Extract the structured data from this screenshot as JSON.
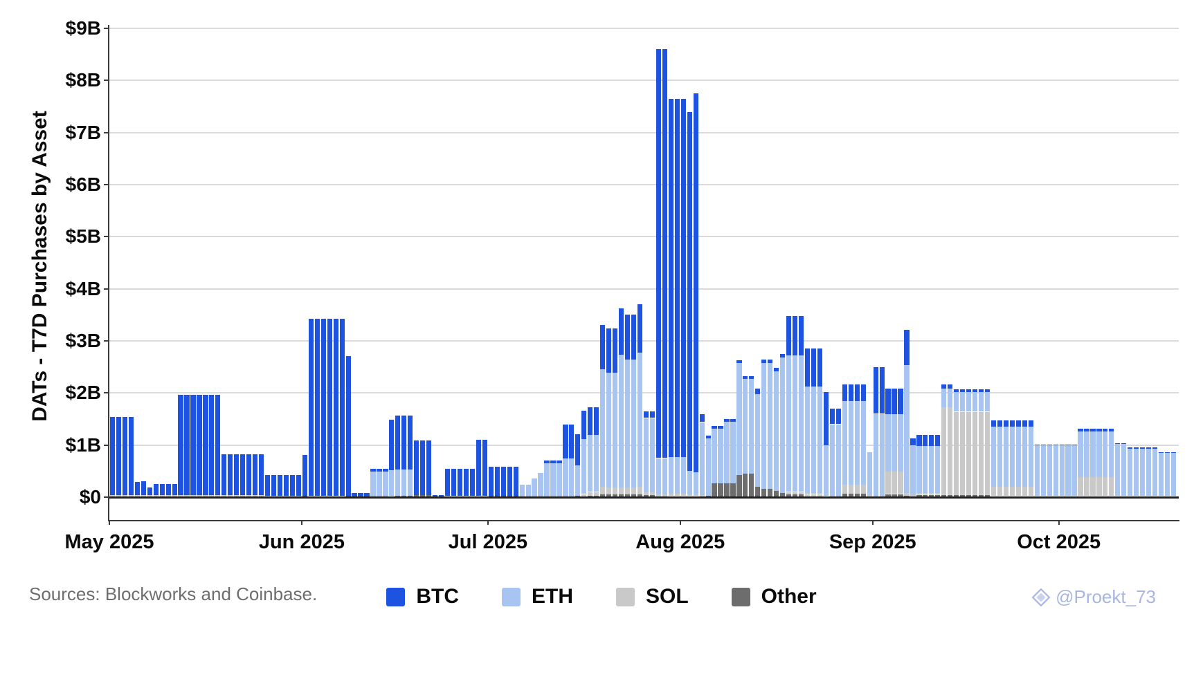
{
  "y_axis": {
    "title": "DATs - T7D Purchases by Asset"
  },
  "footer": {
    "sources": "Sources: Blockworks and Coinbase."
  },
  "watermark": {
    "icon": "gem-icon",
    "text": "@Proekt_73",
    "color": "#a9b6e4"
  },
  "legend": {
    "position": "bottom-center"
  },
  "chart_data": {
    "type": "bar",
    "stacked": true,
    "title": "",
    "xlabel": "",
    "ylabel": "DATs - T7D Purchases by Asset",
    "unit": "billions USD per bar (daily, trailing-7-day purchases)",
    "ylim": [
      0,
      9
    ],
    "y_tick_labels": [
      "$0",
      "$1B",
      "$2B",
      "$3B",
      "$4B",
      "$5B",
      "$6B",
      "$7B",
      "$8B",
      "$9B"
    ],
    "x_tick_labels": [
      {
        "label": "May 2025",
        "day_offset": 0
      },
      {
        "label": "Jun 2025",
        "day_offset": 31
      },
      {
        "label": "Jul 2025",
        "day_offset": 61
      },
      {
        "label": "Aug 2025",
        "day_offset": 92
      },
      {
        "label": "Sep 2025",
        "day_offset": 123
      },
      {
        "label": "Oct 2025",
        "day_offset": 153
      }
    ],
    "grid": "horizontal",
    "legend_position": "bottom",
    "start_date": "2025-05-01",
    "frequency": "daily",
    "series_colors": {
      "BTC": "#1d53e0",
      "ETH": "#a8c5f2",
      "SOL": "#c9c9c9",
      "Other": "#6d6d6d"
    },
    "stack_order_bottom_to_top": [
      "Other",
      "SOL",
      "ETH",
      "BTC"
    ],
    "daily_values_rle": {
      "columns": [
        "num_days",
        "BTC",
        "ETH",
        "SOL",
        "Other"
      ],
      "rows": [
        [
          4,
          1.5,
          0,
          0.04,
          0
        ],
        [
          1,
          0.25,
          0,
          0.04,
          0
        ],
        [
          1,
          0.27,
          0,
          0.04,
          0
        ],
        [
          1,
          0.15,
          0,
          0.04,
          0
        ],
        [
          4,
          0.21,
          0,
          0.04,
          0
        ],
        [
          7,
          1.92,
          0,
          0.04,
          0
        ],
        [
          7,
          0.78,
          0,
          0.04,
          0
        ],
        [
          6,
          0.4,
          0,
          0.03,
          0
        ],
        [
          1,
          0.79,
          0,
          0.02,
          0
        ],
        [
          6,
          3.4,
          0,
          0.02,
          0
        ],
        [
          1,
          2.7,
          0,
          0.01,
          0
        ],
        [
          3,
          0.07,
          0,
          0,
          0.01
        ],
        [
          3,
          0.06,
          0.48,
          0,
          0.01
        ],
        [
          1,
          0.97,
          0.5,
          0,
          0.02
        ],
        [
          3,
          1.04,
          0.5,
          0,
          0.03
        ],
        [
          3,
          1.05,
          0,
          0,
          0.04
        ],
        [
          2,
          0.02,
          0,
          0,
          0.02
        ],
        [
          5,
          0.53,
          0,
          0,
          0.02
        ],
        [
          2,
          1.08,
          0,
          0,
          0.02
        ],
        [
          5,
          0.57,
          0,
          0,
          0.01
        ],
        [
          2,
          0,
          0.23,
          0,
          0.01
        ],
        [
          1,
          0,
          0.35,
          0,
          0.01
        ],
        [
          1,
          0,
          0.46,
          0,
          0.01
        ],
        [
          3,
          0.05,
          0.64,
          0,
          0.01
        ],
        [
          2,
          0.65,
          0.73,
          0,
          0.02
        ],
        [
          1,
          0.6,
          0.58,
          0,
          0.03
        ],
        [
          1,
          0.55,
          1.05,
          0.04,
          0.02
        ],
        [
          2,
          0.52,
          1.1,
          0.07,
          0.03
        ],
        [
          1,
          0.85,
          2.25,
          0.15,
          0.05
        ],
        [
          2,
          0.85,
          2.2,
          0.14,
          0.05
        ],
        [
          1,
          0.88,
          2.55,
          0.14,
          0.05
        ],
        [
          2,
          0.86,
          2.45,
          0.14,
          0.05
        ],
        [
          1,
          0.92,
          2.58,
          0.15,
          0.05
        ],
        [
          2,
          0.13,
          1.42,
          0.06,
          0.04
        ],
        [
          2,
          7.85,
          0.7,
          0.04,
          0.01
        ],
        [
          3,
          6.88,
          0.7,
          0.05,
          0.02
        ],
        [
          1,
          6.9,
          0.45,
          0.03,
          0.02
        ],
        [
          1,
          7.27,
          0.43,
          0.03,
          0.02
        ],
        [
          1,
          0.15,
          1.4,
          0.02,
          0.02
        ],
        [
          1,
          0.05,
          1.1,
          0,
          0.03
        ],
        [
          2,
          0.05,
          1.05,
          0,
          0.27
        ],
        [
          2,
          0.05,
          1.18,
          0,
          0.27
        ],
        [
          1,
          0.05,
          2.15,
          0,
          0.43
        ],
        [
          2,
          0.05,
          1.82,
          0,
          0.45
        ],
        [
          1,
          0.1,
          1.78,
          0,
          0.2
        ],
        [
          2,
          0.06,
          2.42,
          0,
          0.16
        ],
        [
          1,
          0.06,
          2.3,
          0,
          0.12
        ],
        [
          1,
          0.07,
          2.6,
          0,
          0.08
        ],
        [
          3,
          0.76,
          2.62,
          0.05,
          0.05
        ],
        [
          3,
          0.73,
          2.06,
          0.04,
          0.02
        ],
        [
          1,
          1.02,
          0.98,
          0,
          0.02
        ],
        [
          2,
          0.3,
          1.38,
          0,
          0.02
        ],
        [
          4,
          0.33,
          1.6,
          0.17,
          0.07
        ],
        [
          1,
          0,
          0.82,
          0.02,
          0.02
        ],
        [
          2,
          0.9,
          1.58,
          0,
          0.02
        ],
        [
          3,
          0.49,
          1.1,
          0.43,
          0.06
        ],
        [
          1,
          0.68,
          2.45,
          0.05,
          0.03
        ],
        [
          1,
          0.14,
          0.95,
          0.02,
          0.02
        ],
        [
          4,
          0.22,
          0.92,
          0.02,
          0.04
        ],
        [
          2,
          0.09,
          0.35,
          1.69,
          0.04
        ],
        [
          6,
          0.05,
          0.38,
          1.6,
          0.04
        ],
        [
          7,
          0.12,
          1.15,
          0.18,
          0.02
        ],
        [
          7,
          0.02,
          0.97,
          0,
          0.02
        ],
        [
          6,
          0.05,
          0.88,
          0.36,
          0.02
        ],
        [
          2,
          0.02,
          1.0,
          0,
          0.02
        ],
        [
          5,
          0.02,
          0.91,
          0,
          0.02
        ],
        [
          3,
          0.01,
          0.84,
          0,
          0.02
        ]
      ]
    },
    "legend_entries": [
      "BTC",
      "ETH",
      "SOL",
      "Other"
    ]
  }
}
